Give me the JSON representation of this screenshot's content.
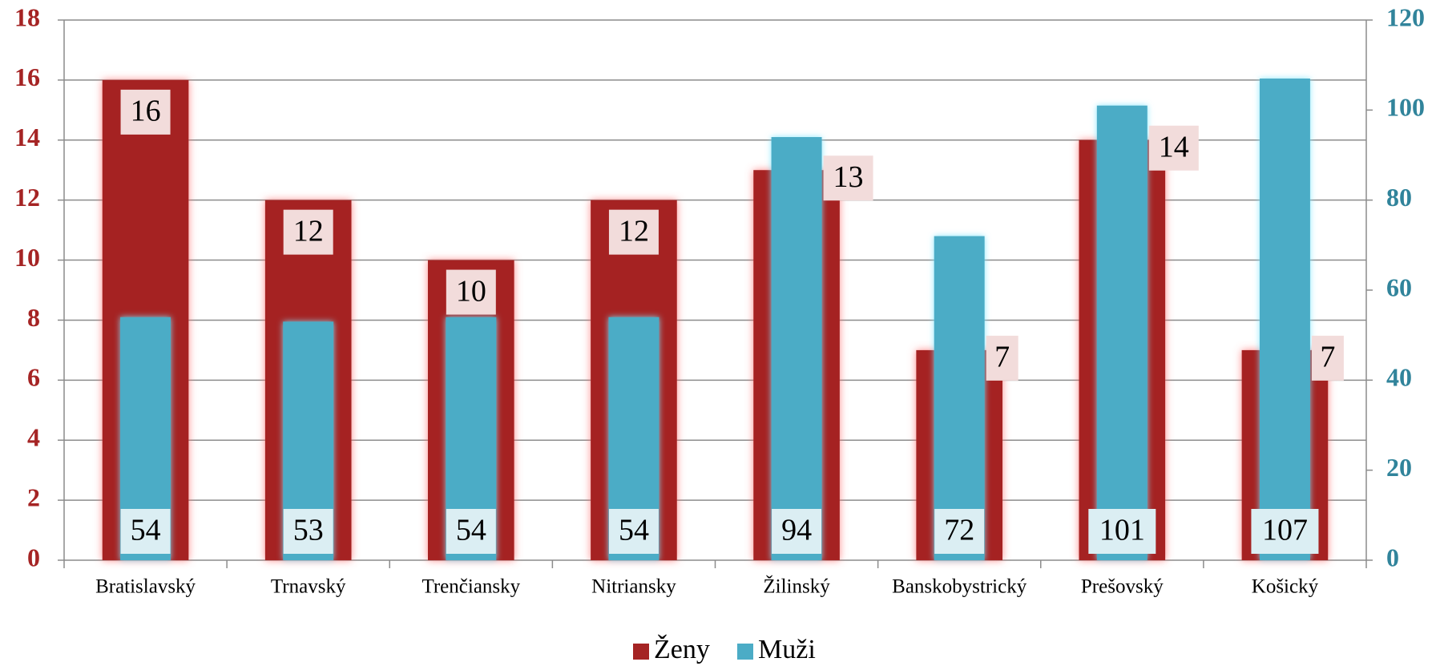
{
  "chart_data": {
    "type": "bar",
    "categories": [
      "Bratislavský",
      "Trnavský",
      "Trenčiansky",
      "Nitriansky",
      "Žilinský",
      "Banskobystrický",
      "Prešovský",
      "Košický"
    ],
    "series": [
      {
        "name": "Ženy",
        "color": "#a52424",
        "values": [
          16,
          12,
          10,
          12,
          13,
          7,
          14,
          7
        ]
      },
      {
        "name": "Muži",
        "color": "#4bacc6",
        "axis": "y2",
        "values": [
          54,
          53,
          54,
          54,
          94,
          72,
          101,
          107
        ]
      }
    ],
    "ylim": [
      0,
      18
    ],
    "yticks": [
      0,
      2,
      4,
      6,
      8,
      10,
      12,
      14,
      16,
      18
    ],
    "y2lim": [
      0,
      120
    ],
    "y2ticks": [
      0,
      20,
      40,
      60,
      80,
      100,
      120
    ],
    "grid": true,
    "legend": "bottom"
  }
}
